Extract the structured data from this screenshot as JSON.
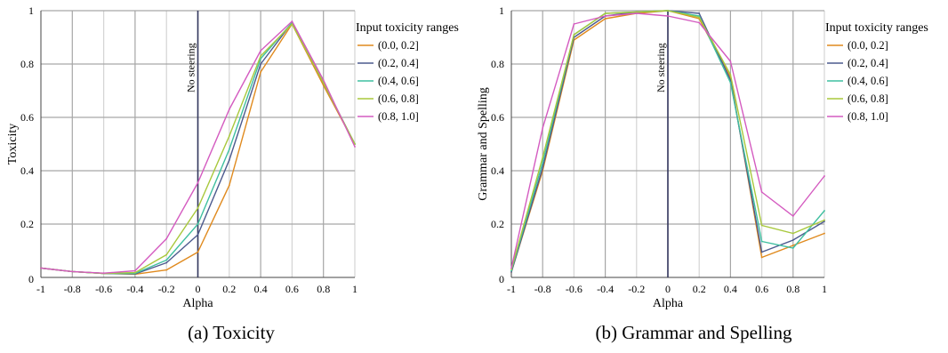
{
  "colors": {
    "grid": "#a6a6a6",
    "gridLight": "#d4d4d4",
    "axis": "#444444",
    "steering_line": "#34385f"
  },
  "chart_data": [
    {
      "type": "line",
      "caption": "(a) Toxicity",
      "xlabel": "Alpha",
      "ylabel": "Toxicity",
      "xlim": [
        -1,
        1
      ],
      "ylim": [
        0,
        1
      ],
      "x": [
        -1,
        -0.8,
        -0.6,
        -0.4,
        -0.2,
        0,
        0.2,
        0.4,
        0.6,
        0.8,
        1
      ],
      "x_tick_labels": [
        "-1",
        "-0.8",
        "-0.6",
        "-0.4",
        "-0.2",
        "0",
        "0.2",
        "0.4",
        "0.6",
        "0.8",
        "1"
      ],
      "y_ticks": [
        0,
        0.2,
        0.4,
        0.6,
        0.8,
        1
      ],
      "y_tick_labels": [
        "0",
        "0.2",
        "0.4",
        "0.6",
        "0.8",
        "1"
      ],
      "grid": true,
      "annotation": {
        "text": "No steering",
        "x": 0
      },
      "legend": {
        "title": "Input toxicity ranges",
        "placement": "right"
      },
      "series": [
        {
          "name": "(0.0, 0.2]",
          "color": "#e08a1e",
          "values": [
            0.035,
            0.022,
            0.015,
            0.012,
            0.028,
            0.095,
            0.345,
            0.77,
            0.95,
            0.72,
            0.5
          ]
        },
        {
          "name": "(0.2, 0.4]",
          "color": "#4c5a8e",
          "values": [
            0.035,
            0.022,
            0.015,
            0.013,
            0.055,
            0.16,
            0.44,
            0.8,
            0.955,
            0.73,
            0.5
          ]
        },
        {
          "name": "(0.4, 0.6]",
          "color": "#3fbfa0",
          "values": [
            0.035,
            0.022,
            0.015,
            0.015,
            0.065,
            0.2,
            0.48,
            0.82,
            0.955,
            0.73,
            0.5
          ]
        },
        {
          "name": "(0.6, 0.8]",
          "color": "#a8c83c",
          "values": [
            0.035,
            0.022,
            0.015,
            0.018,
            0.085,
            0.26,
            0.53,
            0.83,
            0.95,
            0.73,
            0.5
          ]
        },
        {
          "name": "(0.8, 1.0]",
          "color": "#d45bc0",
          "values": [
            0.035,
            0.022,
            0.016,
            0.025,
            0.145,
            0.355,
            0.63,
            0.85,
            0.96,
            0.74,
            0.49
          ]
        }
      ]
    },
    {
      "type": "line",
      "caption": "(b) Grammar and Spelling",
      "xlabel": "Alpha",
      "ylabel": "Grammar and Spelling",
      "xlim": [
        -1,
        1
      ],
      "ylim": [
        0,
        1
      ],
      "x": [
        -1,
        -0.8,
        -0.6,
        -0.4,
        -0.2,
        0,
        0.2,
        0.4,
        0.6,
        0.8,
        1
      ],
      "x_tick_labels": [
        "-1",
        "-0.8",
        "-0.6",
        "-0.4",
        "-0.2",
        "0",
        "0.2",
        "0.4",
        "0.6",
        "0.8",
        "1"
      ],
      "y_ticks": [
        0,
        0.2,
        0.4,
        0.6,
        0.8,
        1
      ],
      "y_tick_labels": [
        "0",
        "0.2",
        "0.4",
        "0.6",
        "0.8",
        "1"
      ],
      "grid": true,
      "annotation": {
        "text": "No steering",
        "x": 0
      },
      "legend": {
        "title": "Input toxicity ranges",
        "placement": "right"
      },
      "series": [
        {
          "name": "(0.0, 0.2]",
          "color": "#e08a1e",
          "values": [
            0.02,
            0.4,
            0.89,
            0.97,
            0.99,
            1.0,
            0.97,
            0.75,
            0.075,
            0.12,
            0.165
          ]
        },
        {
          "name": "(0.2, 0.4]",
          "color": "#4c5a8e",
          "values": [
            0.02,
            0.41,
            0.9,
            0.98,
            0.995,
            1.0,
            0.99,
            0.74,
            0.095,
            0.14,
            0.21
          ]
        },
        {
          "name": "(0.4, 0.6]",
          "color": "#3fbfa0",
          "values": [
            0.025,
            0.43,
            0.91,
            0.99,
            0.995,
            1.0,
            0.98,
            0.73,
            0.135,
            0.11,
            0.25
          ]
        },
        {
          "name": "(0.6, 0.8]",
          "color": "#a8c83c",
          "values": [
            0.03,
            0.45,
            0.91,
            0.99,
            0.995,
            1.0,
            0.975,
            0.76,
            0.195,
            0.165,
            0.215
          ]
        },
        {
          "name": "(0.8, 1.0]",
          "color": "#d45bc0",
          "values": [
            0.035,
            0.56,
            0.95,
            0.98,
            0.99,
            0.98,
            0.955,
            0.81,
            0.32,
            0.23,
            0.38
          ]
        }
      ]
    }
  ]
}
